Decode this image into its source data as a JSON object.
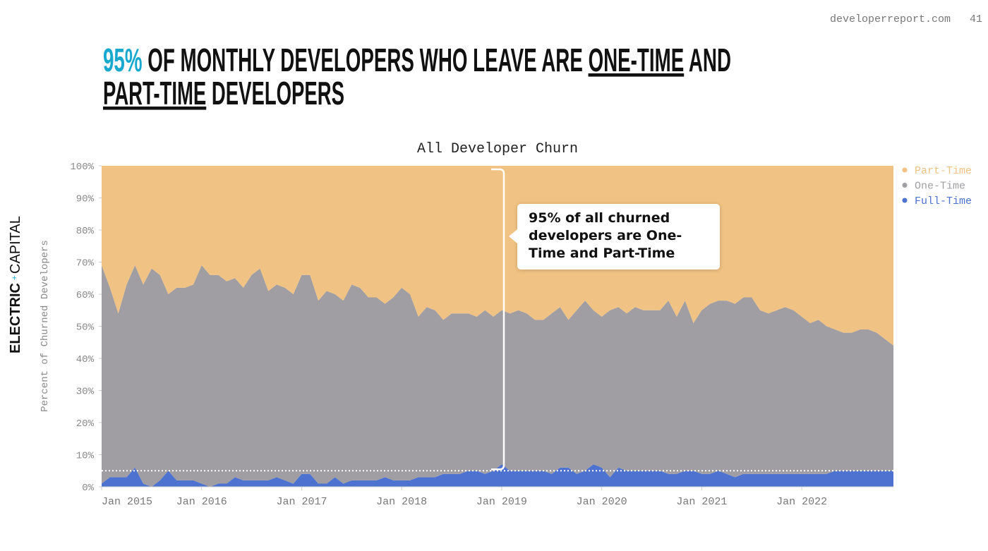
{
  "header": {
    "site": "developerreport.com",
    "page_number": "41",
    "headline": {
      "highlight": "95%",
      "part1": "OF MONTHLY DEVELOPERS WHO LEAVE ARE",
      "term1": "ONE-TIME",
      "part2": "AND",
      "term2": "PART-TIME",
      "part3": "DEVELOPERS"
    }
  },
  "brand": {
    "left": "ELECTRIC",
    "right": "CAPITAL"
  },
  "chart_data": {
    "type": "area",
    "stacked": true,
    "title": "All Developer Churn",
    "ylabel": "Percent of Churned Developers",
    "annotation": "95% of all churned developers are One-Time and Part-Time",
    "reference_line": 5,
    "categories": [
      "Jan 2015",
      null,
      null,
      null,
      null,
      null,
      null,
      null,
      null,
      null,
      null,
      null,
      "Jan 2016",
      null,
      null,
      null,
      null,
      null,
      null,
      null,
      null,
      null,
      null,
      null,
      "Jan 2017",
      null,
      null,
      null,
      null,
      null,
      null,
      null,
      null,
      null,
      null,
      null,
      "Jan 2018",
      null,
      null,
      null,
      null,
      null,
      null,
      null,
      null,
      null,
      null,
      null,
      "Jan 2019",
      null,
      null,
      null,
      null,
      null,
      null,
      null,
      null,
      null,
      null,
      null,
      "Jan 2020",
      null,
      null,
      null,
      null,
      null,
      null,
      null,
      null,
      null,
      null,
      null,
      "Jan 2021",
      null,
      null,
      null,
      null,
      null,
      null,
      null,
      null,
      null,
      null,
      null,
      "Jan 2022",
      null,
      null,
      null,
      null,
      null,
      null,
      null,
      null,
      null,
      null,
      null
    ],
    "series": [
      {
        "name": "Full-Time",
        "color": "#4e72cf",
        "values": [
          1,
          3,
          3,
          3,
          6,
          1,
          0,
          2,
          5,
          2,
          2,
          2,
          1,
          0,
          1,
          1,
          3,
          2,
          2,
          2,
          2,
          3,
          2,
          1,
          4,
          4,
          1,
          1,
          3,
          1,
          2,
          2,
          2,
          2,
          3,
          2,
          2,
          2,
          3,
          3,
          3,
          4,
          4,
          4,
          5,
          5,
          4,
          5,
          7,
          5,
          5,
          5,
          5,
          5,
          4,
          6,
          6,
          4,
          5,
          7,
          6,
          3,
          6,
          5,
          5,
          5,
          5,
          5,
          4,
          4,
          5,
          5,
          4,
          4,
          5,
          4,
          3,
          4,
          4,
          4,
          4,
          4,
          4,
          4,
          4,
          4,
          4,
          4,
          5,
          5,
          5,
          5,
          5,
          5,
          5,
          5
        ]
      },
      {
        "name": "One-Time",
        "color": "#a09ea2",
        "values": [
          68,
          59,
          51,
          60,
          63,
          62,
          68,
          64,
          55,
          60,
          60,
          61,
          68,
          66,
          65,
          63,
          62,
          60,
          64,
          66,
          59,
          60,
          60,
          59,
          62,
          62,
          57,
          60,
          57,
          57,
          61,
          60,
          57,
          57,
          54,
          57,
          60,
          58,
          50,
          53,
          52,
          48,
          50,
          50,
          49,
          48,
          51,
          48,
          48,
          49,
          50,
          49,
          47,
          47,
          50,
          50,
          46,
          51,
          53,
          48,
          47,
          52,
          50,
          49,
          51,
          50,
          50,
          50,
          54,
          49,
          53,
          46,
          51,
          53,
          53,
          54,
          54,
          55,
          55,
          51,
          50,
          51,
          52,
          51,
          49,
          47,
          48,
          46,
          44,
          43,
          43,
          44,
          44,
          43,
          41,
          39
        ]
      },
      {
        "name": "Part-Time",
        "color": "#f0c283",
        "values": [
          31,
          38,
          46,
          37,
          31,
          37,
          32,
          34,
          40,
          38,
          38,
          37,
          31,
          34,
          34,
          36,
          35,
          38,
          34,
          32,
          39,
          37,
          38,
          40,
          34,
          34,
          42,
          39,
          40,
          42,
          37,
          38,
          41,
          41,
          43,
          41,
          38,
          40,
          47,
          44,
          45,
          48,
          46,
          46,
          46,
          47,
          45,
          47,
          45,
          46,
          45,
          46,
          48,
          48,
          46,
          44,
          48,
          45,
          42,
          45,
          47,
          45,
          44,
          46,
          44,
          45,
          45,
          45,
          42,
          47,
          42,
          49,
          45,
          43,
          42,
          42,
          43,
          41,
          41,
          45,
          46,
          45,
          44,
          45,
          47,
          49,
          48,
          50,
          51,
          52,
          52,
          51,
          51,
          52,
          54,
          56
        ]
      }
    ],
    "ylim": [
      0,
      100
    ],
    "yticks": [
      {
        "value": 0,
        "label": "0%"
      },
      {
        "value": 10,
        "label": "10%"
      },
      {
        "value": 20,
        "label": "20%"
      },
      {
        "value": 30,
        "label": "30%"
      },
      {
        "value": 40,
        "label": "40%"
      },
      {
        "value": 50,
        "label": "50%"
      },
      {
        "value": 60,
        "label": "60%"
      },
      {
        "value": 70,
        "label": "70%"
      },
      {
        "value": 80,
        "label": "80%"
      },
      {
        "value": 90,
        "label": "90%"
      },
      {
        "value": 100,
        "label": "100%"
      }
    ],
    "legend": "top-right"
  }
}
